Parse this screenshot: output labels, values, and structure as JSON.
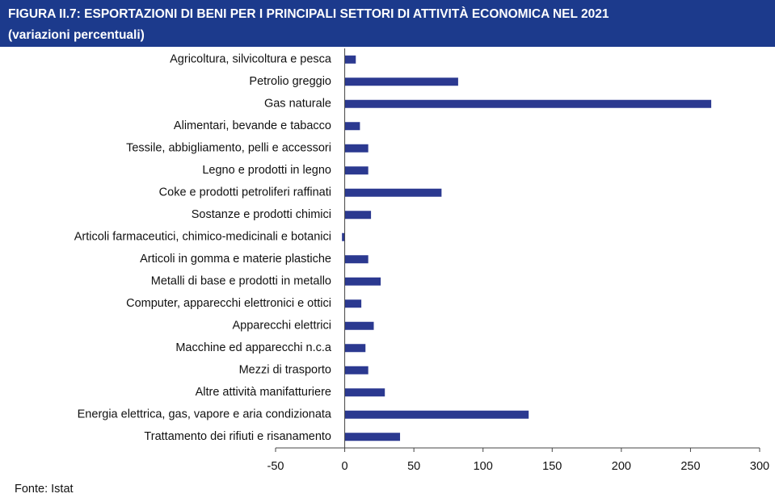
{
  "chart_data": {
    "type": "barh",
    "title": "FIGURA II.7: ESPORTAZIONI DI BENI PER I PRINCIPALI SETTORI DI ATTIVITÀ ECONOMICA NEL 2021",
    "subtitle": "(variazioni percentuali)",
    "source": "Fonte: Istat",
    "categories": [
      "Agricoltura, silvicoltura e pesca",
      "Petrolio greggio",
      "Gas naturale",
      "Alimentari, bevande e tabacco",
      "Tessile, abbigliamento, pelli e accessori",
      "Legno e prodotti in legno",
      "Coke e prodotti petroliferi raffinati",
      "Sostanze e prodotti chimici",
      "Articoli farmaceutici, chimico-medicinali e botanici",
      "Articoli in gomma e materie plastiche",
      "Metalli di base e prodotti in metallo",
      "Computer, apparecchi elettronici e ottici",
      "Apparecchi elettrici",
      "Macchine ed apparecchi n.c.a",
      "Mezzi di trasporto",
      "Altre attività manifatturiere",
      "Energia elettrica, gas, vapore e aria condizionata",
      "Trattamento dei rifiuti e risanamento"
    ],
    "values": [
      8,
      82,
      265,
      11,
      17,
      17,
      70,
      19,
      -2,
      17,
      26,
      12,
      21,
      15,
      17,
      29,
      133,
      40
    ],
    "color": "#2b3990",
    "xlim": [
      -50,
      300
    ],
    "xticks": [
      -50,
      0,
      50,
      100,
      150,
      200,
      250,
      300
    ],
    "grid": false
  }
}
